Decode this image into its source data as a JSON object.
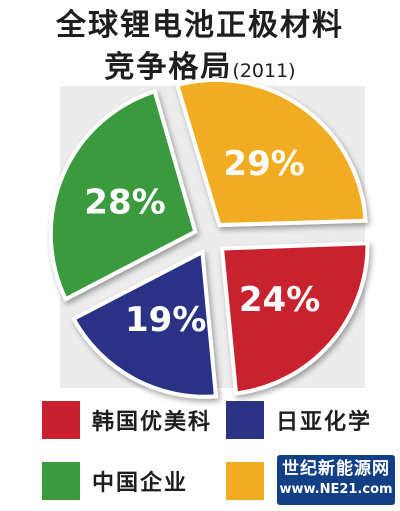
{
  "chart_data": {
    "type": "pie",
    "title": "全球锂电池正极材料",
    "subtitle": "竞争格局",
    "year": "(2011)",
    "slices": [
      {
        "name": "韩国优美科",
        "value": 24,
        "label": "24%",
        "color": "#c8202e"
      },
      {
        "name": "日亚化学",
        "value": 19,
        "label": "19%",
        "color": "#2a3285"
      },
      {
        "name": "中国企业",
        "value": 28,
        "label": "28%",
        "color": "#3a9a3d"
      },
      {
        "name": "",
        "value": 29,
        "label": "29%",
        "color": "#f2ac24"
      }
    ],
    "legend_position": "bottom"
  },
  "watermark": {
    "name": "世纪新能源网",
    "url": "www.NE21.com"
  }
}
